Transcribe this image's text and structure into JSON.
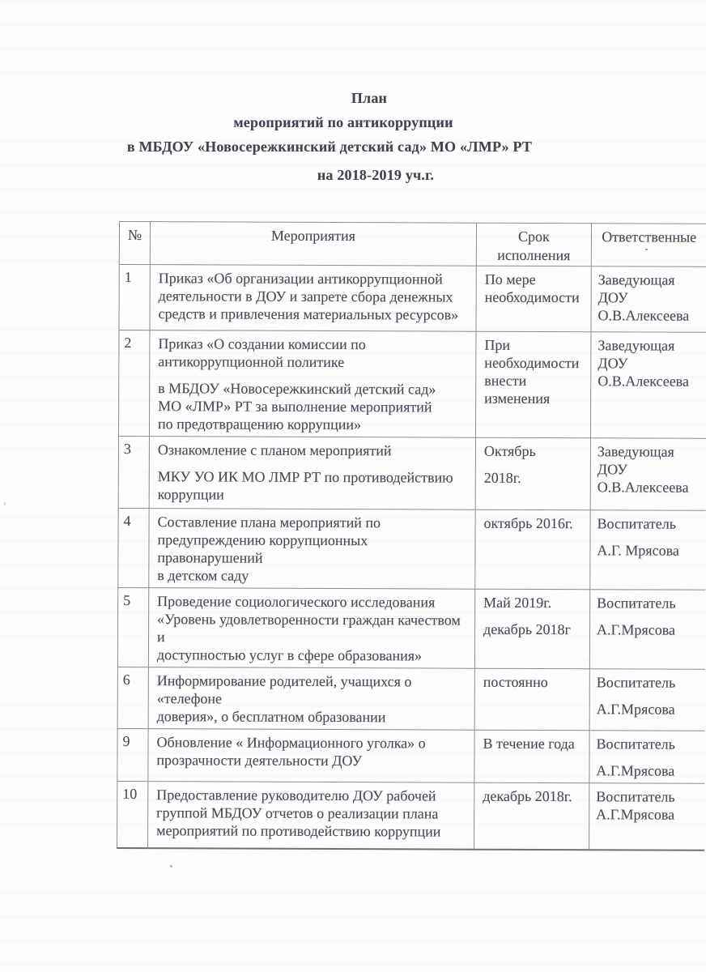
{
  "title": {
    "lines": [
      "План",
      "мероприятий по антикоррупции",
      "в МБДОУ  «Новосережкинский детский сад» МО «ЛМР» РТ",
      "на 2018-2019 уч.г."
    ]
  },
  "table": {
    "headers": [
      "№",
      "Мероприятия",
      "Срок\nисполнения",
      "Ответственные"
    ],
    "rows": [
      {
        "num": "1",
        "activity": [
          "Приказ «Об организации антикоррупционной\nдеятельности в ДОУ и  запрете сбора денежных\nсредств и привлечения материальных ресурсов»"
        ],
        "term": [
          "По мере\nнеобходимости"
        ],
        "responsible": [
          "Заведующая ДОУ\nО.В.Алексеева"
        ]
      },
      {
        "num": "2",
        "activity": [
          "Приказ «О создании комиссии по\nантикоррупционной политике",
          "в МБДОУ «Новосережкинский детский сад»\nМО «ЛМР» РТ за  выполнение мероприятий\nпо  предотвращению коррупции»"
        ],
        "term": [
          "При\nнеобходимости\nвнести\nизменения"
        ],
        "responsible": [
          "Заведующая ДОУ\nО.В.Алексеева"
        ]
      },
      {
        "num": "3",
        "activity": [
          "Ознакомление с планом мероприятий",
          "МКУ УО ИК МО ЛМР РТ по противодействию\nкоррупции"
        ],
        "term": [
          "Октябрь",
          "2018г."
        ],
        "responsible": [
          "Заведующая ДОУ\nО.В.Алексеева"
        ]
      },
      {
        "num": "4",
        "activity": [
          "Составление плана мероприятий по\nпредупреждению коррупционных правонарушений\nв детском саду"
        ],
        "term": [
          "октябрь 2016г."
        ],
        "responsible": [
          "Воспитатель",
          "А.Г. Мрясова"
        ]
      },
      {
        "num": "5",
        "activity": [
          "Проведение социологического исследования\n«Уровень удовлетворенности граждан качеством и\nдоступностью услуг в сфере образования»"
        ],
        "term": [
          "Май 2019г.",
          "декабрь 2018г"
        ],
        "responsible": [
          "Воспитатель",
          "А.Г.Мрясова"
        ]
      },
      {
        "num": "6",
        "activity": [
          "Информирование родителей, учащихся о «телефоне\nдоверия», о бесплатном образовании"
        ],
        "term": [
          "постоянно"
        ],
        "responsible": [
          "Воспитатель",
          "А.Г.Мрясова"
        ]
      },
      {
        "num": "9",
        "activity": [
          "Обновление « Информационного уголка» о\nпрозрачности деятельности ДОУ"
        ],
        "term": [
          "В течение года"
        ],
        "responsible": [
          "Воспитатель",
          "А.Г.Мрясова"
        ]
      },
      {
        "num": "10",
        "activity": [
          "Предоставление руководителю ДОУ рабочей\nгруппой МБДОУ отчетов о реализации плана\nмероприятий по противодействию коррупции"
        ],
        "term": [
          "декабрь 2018г."
        ],
        "responsible": [
          "Воспитатель\nА.Г.Мрясова"
        ]
      }
    ]
  }
}
